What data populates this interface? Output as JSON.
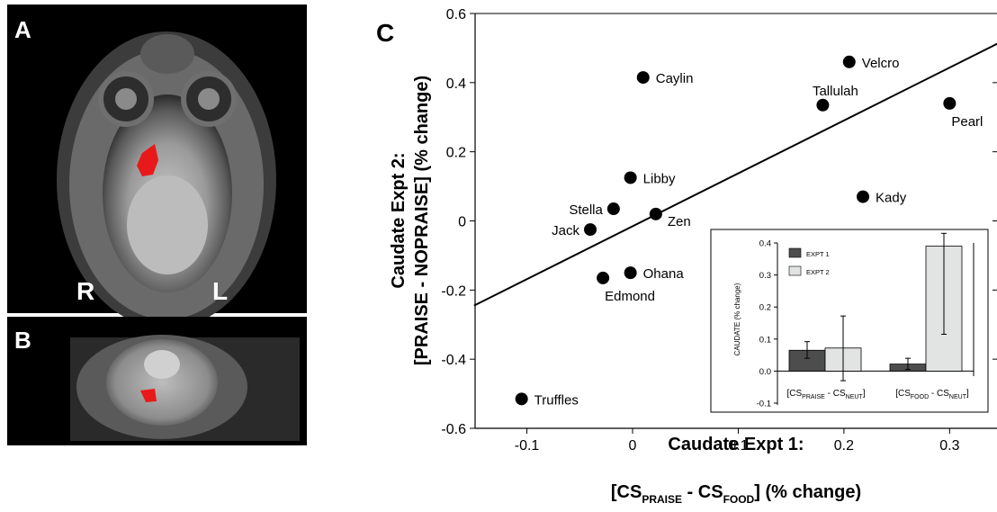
{
  "panels": {
    "a_label": "A",
    "b_label": "B",
    "c_label": "C",
    "right_label": "R",
    "left_label": "L",
    "roi_color": "#e8191a"
  },
  "chart_data": [
    {
      "type": "scatter",
      "title": "",
      "xlabel_line1": "Caudate Expt 1:",
      "xlabel_line2": {
        "open": "[CS",
        "sub1": "PRAISE",
        "mid": " - CS",
        "sub2": "FOOD",
        "close": "] (% change)"
      },
      "ylabel_line1": "Caudate Expt 2:",
      "ylabel_line2": "[PRAISE - NOPRAISE] (% change)",
      "xlim": [
        -0.15,
        0.35
      ],
      "ylim": [
        -0.6,
        0.6
      ],
      "xticks": [
        -0.1,
        0,
        0.1,
        0.2,
        0.3
      ],
      "xtick_labels": [
        "-0.1",
        "0",
        "0.1",
        "0.2",
        "0.3"
      ],
      "yticks": [
        0.6,
        0.4,
        0.2,
        0,
        -0.2,
        -0.4,
        -0.6
      ],
      "ytick_labels": [
        "0.6",
        "0.4",
        "0.2",
        "0",
        "-0.2",
        "-0.4",
        "-0.6"
      ],
      "grid": false,
      "points": [
        {
          "label": "Caylin",
          "x": 0.01,
          "y": 0.415,
          "pos": "right"
        },
        {
          "label": "Velcro",
          "x": 0.205,
          "y": 0.46,
          "pos": "right"
        },
        {
          "label": "Tallulah",
          "x": 0.18,
          "y": 0.335,
          "pos": "above"
        },
        {
          "label": "Pearl",
          "x": 0.3,
          "y": 0.34,
          "pos": "below"
        },
        {
          "label": "Libby",
          "x": -0.002,
          "y": 0.125,
          "pos": "right"
        },
        {
          "label": "Kady",
          "x": 0.218,
          "y": 0.07,
          "pos": "right"
        },
        {
          "label": "Stella",
          "x": -0.018,
          "y": 0.035,
          "pos": "left"
        },
        {
          "label": "Zen",
          "x": 0.022,
          "y": 0.02,
          "pos": "right-below"
        },
        {
          "label": "Jack",
          "x": -0.04,
          "y": -0.025,
          "pos": "left"
        },
        {
          "label": "Ohana",
          "x": -0.002,
          "y": -0.15,
          "pos": "right"
        },
        {
          "label": "Edmond",
          "x": -0.028,
          "y": -0.165,
          "pos": "below"
        },
        {
          "label": "Truffles",
          "x": -0.105,
          "y": -0.515,
          "pos": "right"
        }
      ],
      "regression_line": {
        "x": [
          -0.15,
          0.35
        ],
        "y": [
          -0.245,
          0.52
        ]
      }
    },
    {
      "type": "bar",
      "title": "",
      "ylabel": "CAUDATE (% change)",
      "ylim": [
        -0.1,
        0.4
      ],
      "yticks": [
        0.4,
        0.3,
        0.2,
        0.1,
        0.0,
        -0.1
      ],
      "ytick_labels": [
        "0.4",
        "0.3",
        "0.2",
        "0.1",
        "0.0",
        "-0.1"
      ],
      "categories": [
        {
          "open": "[CS",
          "sub1": "PRAISE",
          "mid": " - CS",
          "sub2": "NEUT",
          "close": "]"
        },
        {
          "open": "[CS",
          "sub1": "FOOD",
          "mid": " - CS",
          "sub2": "NEUT",
          "close": "]"
        }
      ],
      "series": [
        {
          "name": "EXPT 1",
          "color": "#4d4d4d",
          "values": [
            0.065,
            0.022
          ],
          "err_low": [
            0.04,
            0.005
          ],
          "err_high": [
            0.092,
            0.04
          ]
        },
        {
          "name": "EXPT 2",
          "color": "#e2e3e3",
          "values": [
            0.072,
            0.39
          ],
          "err_low": [
            -0.03,
            0.115
          ],
          "err_high": [
            0.172,
            0.43
          ]
        }
      ],
      "legend": "top-left"
    }
  ]
}
